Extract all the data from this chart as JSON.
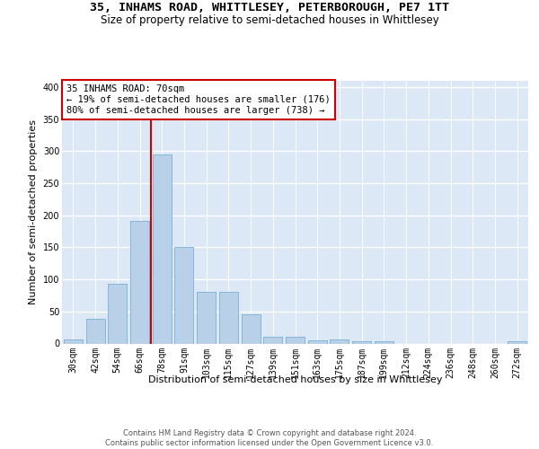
{
  "title": "35, INHAMS ROAD, WHITTLESEY, PETERBOROUGH, PE7 1TT",
  "subtitle": "Size of property relative to semi-detached houses in Whittlesey",
  "xlabel": "Distribution of semi-detached houses by size in Whittlesey",
  "ylabel": "Number of semi-detached properties",
  "categories": [
    "30sqm",
    "42sqm",
    "54sqm",
    "66sqm",
    "78sqm",
    "91sqm",
    "103sqm",
    "115sqm",
    "127sqm",
    "139sqm",
    "151sqm",
    "163sqm",
    "175sqm",
    "187sqm",
    "199sqm",
    "212sqm",
    "224sqm",
    "236sqm",
    "248sqm",
    "260sqm",
    "272sqm"
  ],
  "values": [
    7,
    39,
    93,
    191,
    295,
    150,
    80,
    80,
    45,
    10,
    11,
    5,
    6,
    4,
    4,
    0,
    0,
    0,
    0,
    0,
    3
  ],
  "bar_color": "#b8d0e8",
  "bar_edge_color": "#7aafd4",
  "highlight_line_color": "#cc0000",
  "annotation_text": "35 INHAMS ROAD: 70sqm\n← 19% of semi-detached houses are smaller (176)\n80% of semi-detached houses are larger (738) →",
  "annotation_box_color": "#ffffff",
  "annotation_box_edge": "#cc0000",
  "footer_line1": "Contains HM Land Registry data © Crown copyright and database right 2024.",
  "footer_line2": "Contains public sector information licensed under the Open Government Licence v3.0.",
  "ylim": [
    0,
    410
  ],
  "yticks": [
    0,
    50,
    100,
    150,
    200,
    250,
    300,
    350,
    400
  ],
  "background_color": "#dce8f5",
  "title_fontsize": 9.5,
  "subtitle_fontsize": 8.5,
  "tick_fontsize": 7,
  "label_fontsize": 8,
  "footer_fontsize": 6,
  "annotation_fontsize": 7.5
}
